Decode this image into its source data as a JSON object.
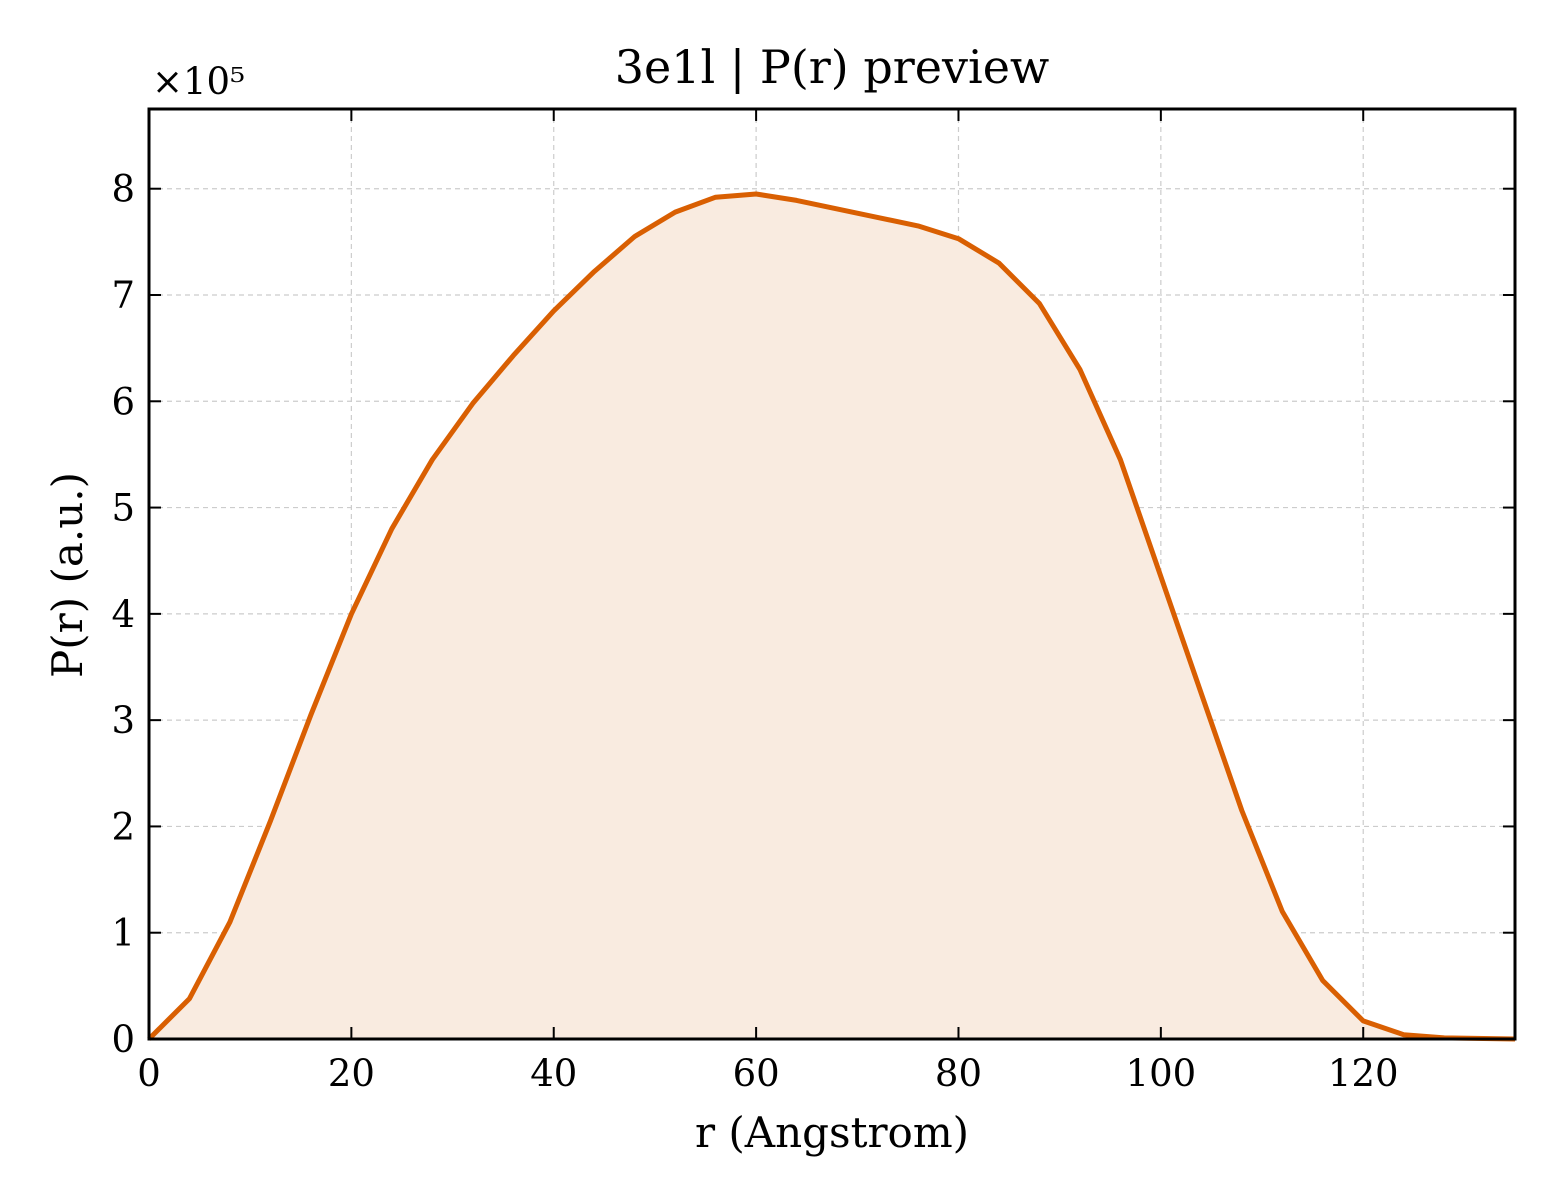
{
  "chart_data": {
    "type": "area",
    "title": "3e1l | P(r) preview",
    "xlabel": "r (Angstrom)",
    "ylabel": "P(r) (a.u.)",
    "y_offset_label": "×10⁵",
    "xlim": [
      0,
      135
    ],
    "ylim": [
      0,
      8.75
    ],
    "y_scale_factor": 100000,
    "xticks": [
      0,
      20,
      40,
      60,
      80,
      100,
      120
    ],
    "yticks": [
      0,
      1,
      2,
      3,
      4,
      5,
      6,
      7,
      8
    ],
    "grid": true,
    "series": [
      {
        "line_color": "#d95f02",
        "fill_color": "#f9ebe0",
        "x": [
          0,
          4,
          8,
          12,
          16,
          20,
          24,
          28,
          32,
          36,
          40,
          44,
          48,
          52,
          56,
          60,
          64,
          68,
          72,
          76,
          80,
          84,
          88,
          92,
          96,
          100,
          104,
          108,
          112,
          116,
          120,
          124,
          128,
          135
        ],
        "y": [
          0,
          0.38,
          1.1,
          2.05,
          3.05,
          4.0,
          4.8,
          5.45,
          5.98,
          6.43,
          6.85,
          7.22,
          7.55,
          7.78,
          7.92,
          7.95,
          7.89,
          7.81,
          7.73,
          7.65,
          7.53,
          7.3,
          6.92,
          6.3,
          5.45,
          4.35,
          3.25,
          2.15,
          1.2,
          0.55,
          0.17,
          0.04,
          0.01,
          0.0
        ]
      }
    ]
  }
}
